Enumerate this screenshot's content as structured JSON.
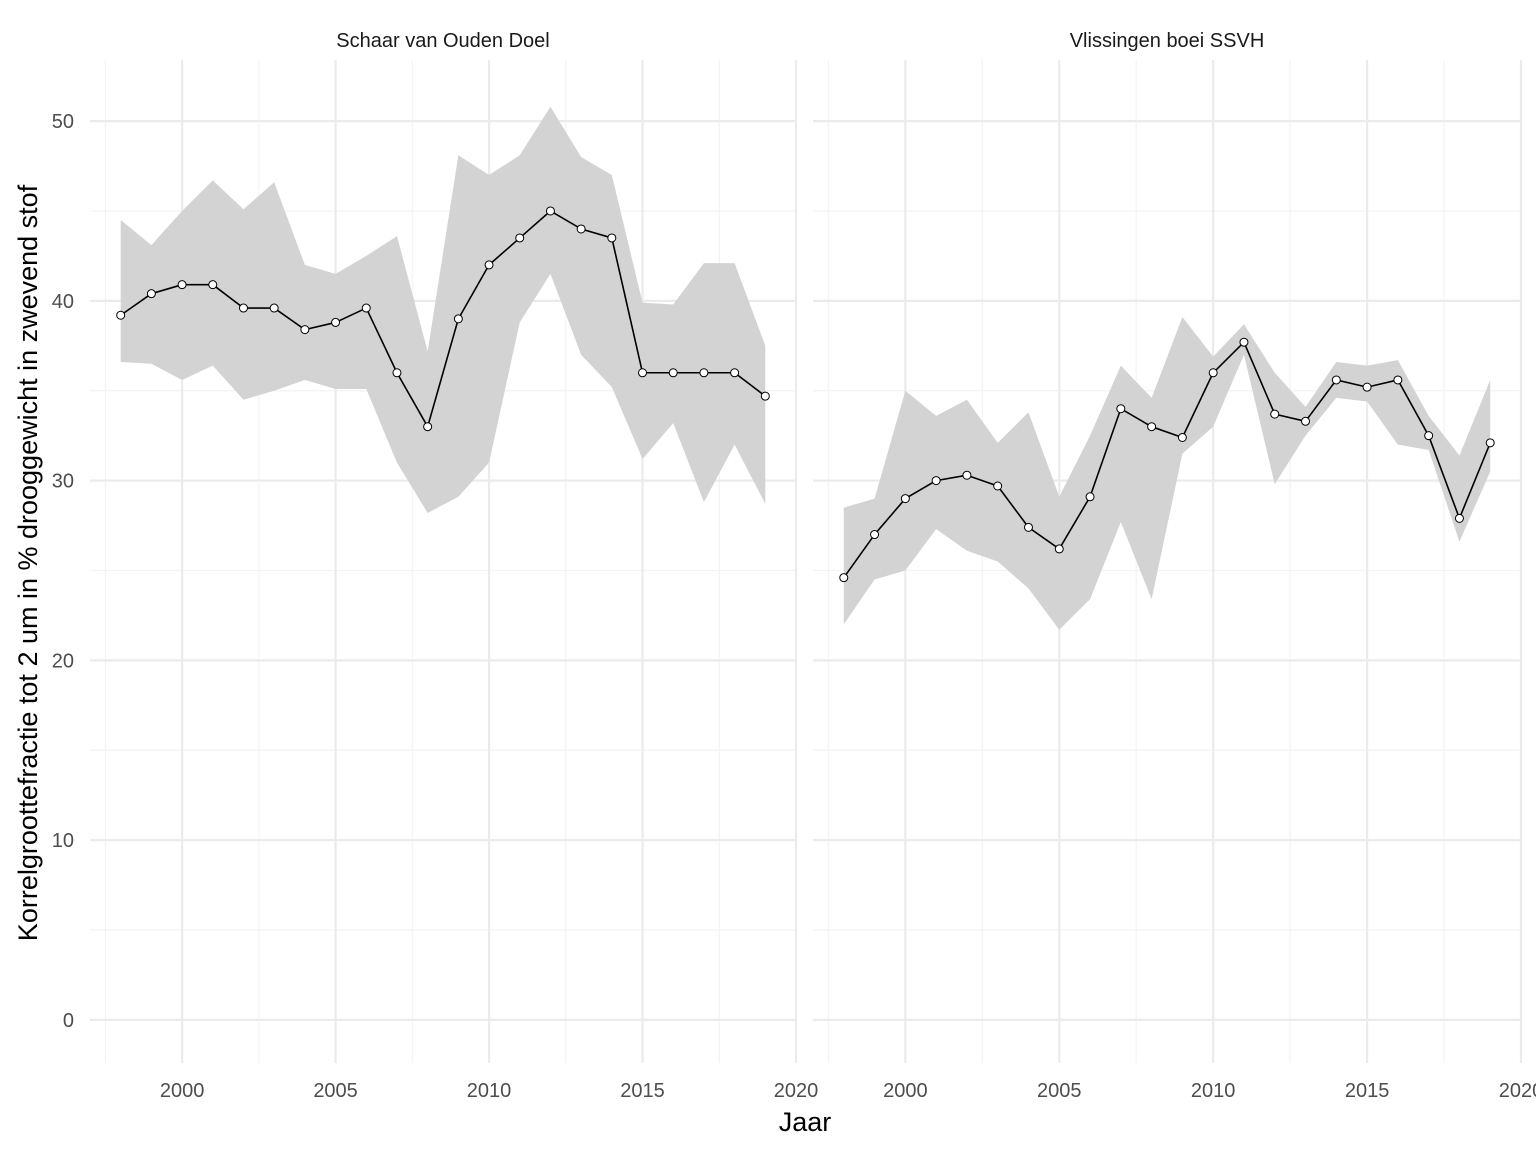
{
  "chart_data": {
    "type": "line",
    "facets": [
      {
        "name": "Schaar van Ouden Doel",
        "x": [
          1998,
          1999,
          2000,
          2001,
          2002,
          2003,
          2004,
          2005,
          2006,
          2007,
          2008,
          2009,
          2010,
          2011,
          2012,
          2013,
          2014,
          2015,
          2016,
          2017,
          2018,
          2019
        ],
        "y": [
          39.2,
          40.4,
          40.9,
          40.9,
          39.6,
          39.6,
          38.4,
          38.8,
          39.6,
          36.0,
          33.0,
          39.0,
          42.0,
          43.5,
          45.0,
          44.0,
          43.5,
          36.0,
          36.0,
          36.0,
          36.0,
          34.7
        ],
        "lower": [
          36.6,
          36.5,
          35.6,
          36.4,
          34.5,
          35.0,
          35.6,
          35.1,
          35.1,
          31.0,
          28.2,
          29.1,
          31.0,
          38.8,
          41.5,
          37.0,
          35.2,
          31.2,
          33.2,
          28.8,
          32.0,
          28.7
        ],
        "upper": [
          44.5,
          43.1,
          45.0,
          46.7,
          45.1,
          46.6,
          42.0,
          41.5,
          42.5,
          43.6,
          37.2,
          48.1,
          47.0,
          48.1,
          50.8,
          48.0,
          47.0,
          39.9,
          39.8,
          42.1,
          42.1,
          37.5
        ]
      },
      {
        "name": "Vlissingen boei SSVH",
        "x": [
          1998,
          1999,
          2000,
          2001,
          2002,
          2003,
          2004,
          2005,
          2006,
          2007,
          2008,
          2009,
          2010,
          2011,
          2012,
          2013,
          2014,
          2015,
          2016,
          2017,
          2018,
          2019
        ],
        "y": [
          24.6,
          27.0,
          29.0,
          30.0,
          30.3,
          29.7,
          27.4,
          26.2,
          29.1,
          34.0,
          33.0,
          32.4,
          36.0,
          37.7,
          33.7,
          33.3,
          35.6,
          35.2,
          35.6,
          32.5,
          27.9,
          32.1
        ],
        "lower": [
          22.0,
          24.5,
          25.0,
          27.3,
          26.1,
          25.5,
          24.0,
          21.7,
          23.4,
          27.7,
          23.4,
          31.5,
          33.0,
          37.0,
          29.8,
          32.5,
          34.6,
          34.4,
          32.0,
          31.7,
          26.6,
          30.5
        ],
        "upper": [
          28.5,
          29.0,
          35.0,
          33.6,
          34.5,
          32.1,
          33.8,
          29.1,
          32.5,
          36.4,
          34.6,
          39.1,
          36.9,
          38.7,
          36.0,
          34.1,
          36.6,
          36.4,
          36.7,
          33.6,
          31.4,
          35.6
        ]
      }
    ],
    "xlabel": "Jaar",
    "ylabel": "Korrelgroottefractie tot 2 um in % drooggewicht in zwevend stof",
    "xlim": [
      1997,
      2020
    ],
    "ylim": [
      -2.4,
      53.4
    ],
    "xticks": [
      2000,
      2005,
      2010,
      2015,
      2020
    ],
    "yticks": [
      0,
      10,
      20,
      30,
      40,
      50
    ],
    "grid": true,
    "legend": "none",
    "colors": {
      "ribbon": "#d3d3d3",
      "line": "#000000",
      "point_fill": "#ffffff",
      "point_stroke": "#000000",
      "grid_major": "#ebebeb",
      "grid_minor": "#f3f3f3",
      "tick_text": "#4d4d4d",
      "strip_text": "#1a1a1a"
    }
  }
}
